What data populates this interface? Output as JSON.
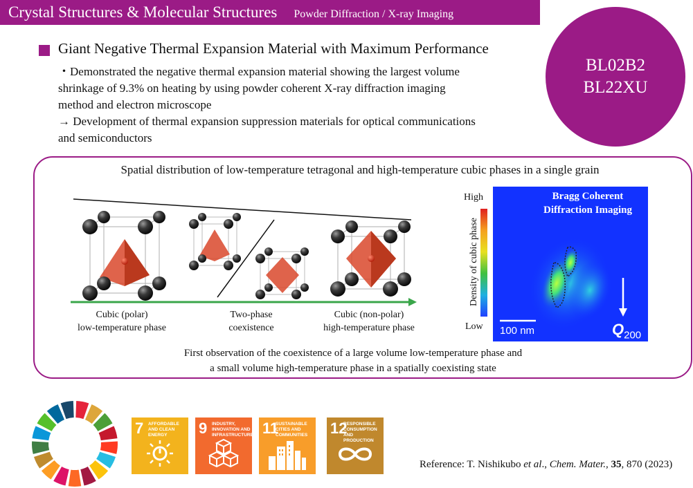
{
  "header": {
    "title": "Crystal Structures & Molecular Structures",
    "subtitle": "Powder Diffraction / X-ray Imaging"
  },
  "beamlines": [
    "BL02B2",
    "BL22XU"
  ],
  "section": {
    "title": "Giant Negative Thermal Expansion Material with Maximum Performance",
    "lines": [
      "・Demonstrated the negative thermal expansion material showing the largest volume",
      "shrinkage of 9.3% on heating by using powder coherent X-ray diffraction imaging",
      "method and electron microscope",
      "→ Development of thermal expansion suppression materials for optical communications",
      "and semiconductors"
    ]
  },
  "figure": {
    "title": "Spatial distribution of low-temperature tetragonal and high-temperature cubic phases in a single grain",
    "phases": [
      {
        "line1": "Cubic (polar)",
        "line2": "low-temperature phase"
      },
      {
        "line1": "Two-phase",
        "line2": "coexistence"
      },
      {
        "line1": "Cubic (non-polar)",
        "line2": "high-temperature phase"
      }
    ],
    "colorbar": {
      "high": "High",
      "low": "Low",
      "label": "Density of cubic phase"
    },
    "bcdi": {
      "title_line1": "Bragg Coherent",
      "title_line2": "Diffraction Imaging",
      "scale": "100 nm",
      "vector": "Q",
      "vector_sub": "200"
    },
    "caption_line1": "First observation of the coexistence of a large volume low-temperature phase and",
    "caption_line2": "a small volume high-temperature phase in a spatially coexisting state"
  },
  "sdgs": [
    {
      "num": "7",
      "text": "AFFORDABLE AND CLEAN ENERGY",
      "color": "#f3b31d",
      "icon": "sun-power-icon"
    },
    {
      "num": "9",
      "text": "INDUSTRY, INNOVATION AND INFRASTRUCTURE",
      "color": "#f26a2e",
      "icon": "cubes-icon"
    },
    {
      "num": "11",
      "text": "SUSTAINABLE CITIES AND COMMUNITIES",
      "color": "#f89d2a",
      "icon": "city-icon"
    },
    {
      "num": "12",
      "text": "RESPONSIBLE CONSUMPTION AND PRODUCTION",
      "color": "#c0882d",
      "icon": "infinity-icon"
    }
  ],
  "reference": {
    "prefix": "Reference: T. Nishikubo ",
    "etal": "et al",
    "mid": "., ",
    "journal": "Chem. Mater.",
    "sep": ", ",
    "volume": "35",
    "rest": ", 870 (2023)"
  },
  "colors": {
    "accent": "#9b1b86",
    "arrow": "#3aa64a",
    "octahedron": "#d9482b",
    "bcdi_bg": "#1232ff"
  }
}
